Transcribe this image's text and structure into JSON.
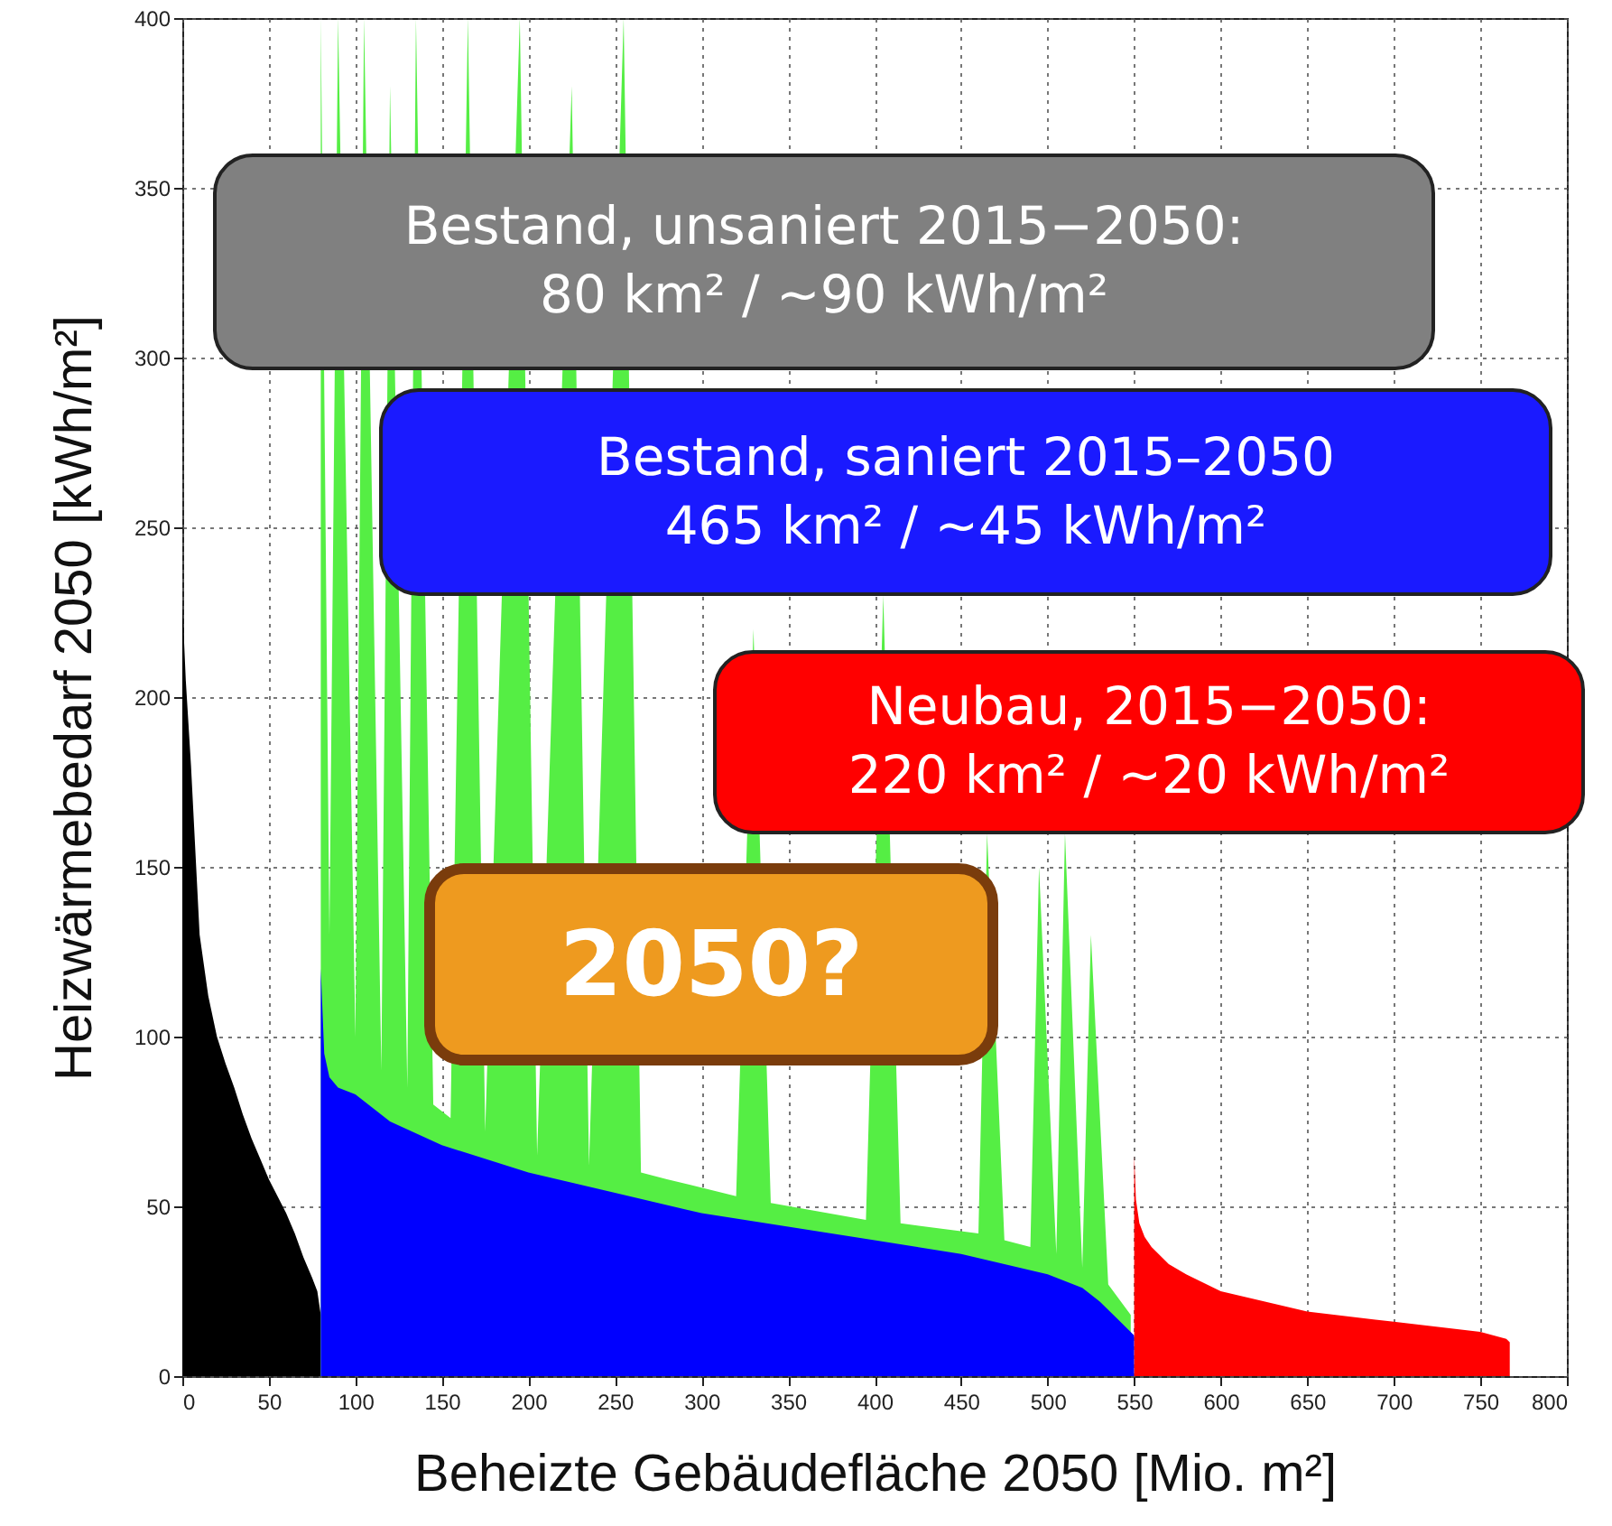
{
  "chart_data": {
    "type": "area",
    "xlabel": "Beheizte Gebäudefläche 2050 [Mio. m²]",
    "ylabel": "Heizwärmebedarf 2050 [kWh/m²]",
    "xlim": [
      0,
      800
    ],
    "xticks": [
      0,
      50,
      100,
      150,
      200,
      250,
      300,
      350,
      400,
      450,
      500,
      550,
      600,
      650,
      700,
      750,
      800
    ],
    "ylim": [
      0,
      400
    ],
    "yticks": [
      0,
      50,
      100,
      150,
      200,
      250,
      300,
      350,
      400
    ],
    "grid": true,
    "series": [
      {
        "color": "#000000",
        "x": [
          0,
          2,
          5,
          8,
          10,
          15,
          20,
          25,
          30,
          35,
          40,
          45,
          50,
          55,
          60,
          65,
          70,
          75,
          78,
          80
        ],
        "values": [
          228,
          205,
          180,
          150,
          130,
          112,
          100,
          92,
          85,
          77,
          70,
          64,
          58,
          53,
          48,
          42,
          35,
          29,
          25,
          18
        ]
      },
      {
        "color": "#55ee44",
        "x": [
          80,
          85,
          90,
          100,
          105,
          115,
          120,
          130,
          135,
          145,
          155,
          165,
          175,
          195,
          205,
          225,
          235,
          255,
          265,
          280,
          320,
          330,
          340,
          395,
          405,
          415,
          460,
          465,
          475,
          490,
          495,
          505,
          510,
          520,
          525,
          535,
          548
        ],
        "values": [
          400,
          130,
          400,
          100,
          400,
          90,
          380,
          85,
          400,
          80,
          76,
          400,
          72,
          400,
          65,
          380,
          62,
          400,
          60,
          58,
          53,
          220,
          51,
          46,
          230,
          45,
          42,
          160,
          40,
          38,
          150,
          36,
          160,
          32,
          130,
          27,
          18
        ]
      },
      {
        "color": "#0000ff",
        "x": [
          80,
          82,
          85,
          90,
          100,
          120,
          150,
          200,
          250,
          300,
          350,
          400,
          450,
          500,
          520,
          530,
          540,
          550
        ],
        "values": [
          120,
          95,
          88,
          85,
          83,
          75,
          68,
          60,
          54,
          48,
          44,
          40,
          36,
          30,
          26,
          22,
          17,
          12
        ]
      },
      {
        "color": "#ff0000",
        "x": [
          550,
          551,
          553,
          556,
          560,
          570,
          580,
          600,
          625,
          650,
          700,
          750,
          765,
          767
        ],
        "values": [
          65,
          52,
          45,
          41,
          38,
          33,
          30,
          25,
          22,
          19,
          16,
          13,
          11,
          10
        ]
      }
    ],
    "annotations": [
      "Bestand, unsaniert 2015−2050:\n80 km² / ~90 kWh/m²",
      "Bestand, saniert 2015–2050\n465 km² / ~45  kWh/m²",
      "Neubau, 2015−2050:\n220 km² / ~20  kWh/m²",
      "2050?"
    ]
  }
}
